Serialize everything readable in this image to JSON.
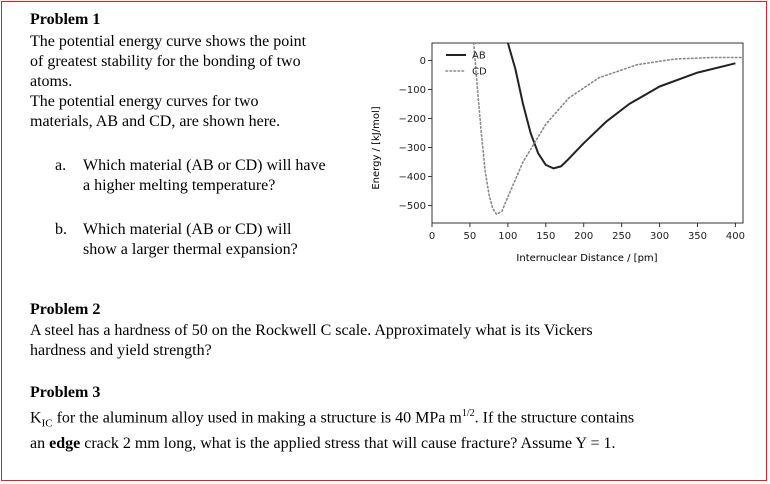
{
  "problem1": {
    "heading": "Problem 1",
    "lines": [
      "The potential energy curve shows the point",
      "of greatest stability for the bonding of two",
      "atoms.",
      "The potential energy curves for two",
      "materials, AB and CD, are shown here."
    ],
    "question_a_marker": "a.",
    "question_a_lines": [
      "Which material (AB or CD) will have",
      "a higher melting temperature?"
    ],
    "question_b_marker": "b.",
    "question_b_lines": [
      "Which material (AB or CD) will",
      "show a larger thermal expansion?"
    ]
  },
  "problem2": {
    "heading": "Problem 2",
    "lines": [
      "A steel has a hardness of 50 on the Rockwell C scale. Approximately what is its Vickers",
      "hardness and yield strength?"
    ]
  },
  "problem3": {
    "heading": "Problem 3",
    "line1_a": "K",
    "line1_sub": "IC",
    "line1_b": " for the aluminum alloy used in making a structure is 40 MPa m",
    "line1_sup": "1/2",
    "line1_c": ".  If the structure contains",
    "line2_a": "an ",
    "line2_bold": "edge",
    "line2_b": " crack 2 mm long, what is the applied stress that will cause fracture?  Assume Y = 1."
  },
  "chart_data": {
    "type": "line",
    "xlabel": "Internuclear Distance / [pm]",
    "ylabel": "Energy / [kJ/mol]",
    "xlim": [
      0,
      410
    ],
    "ylim": [
      -560,
      60
    ],
    "xticks": [
      0,
      50,
      100,
      150,
      200,
      250,
      300,
      350,
      400
    ],
    "yticks": [
      0,
      -100,
      -200,
      -300,
      -400,
      -500
    ],
    "legend_position": "top-left",
    "series": [
      {
        "name": "AB",
        "style": "solid",
        "color": "#222222",
        "points": [
          [
            100,
            60
          ],
          [
            110,
            -30
          ],
          [
            120,
            -150
          ],
          [
            130,
            -250
          ],
          [
            140,
            -320
          ],
          [
            150,
            -360
          ],
          [
            160,
            -372
          ],
          [
            170,
            -365
          ],
          [
            180,
            -340
          ],
          [
            200,
            -285
          ],
          [
            230,
            -210
          ],
          [
            260,
            -150
          ],
          [
            300,
            -90
          ],
          [
            350,
            -42
          ],
          [
            400,
            -10
          ]
        ]
      },
      {
        "name": "CD",
        "style": "dotted",
        "color": "#888888",
        "points": [
          [
            55,
            60
          ],
          [
            60,
            -100
          ],
          [
            65,
            -250
          ],
          [
            70,
            -380
          ],
          [
            75,
            -460
          ],
          [
            80,
            -510
          ],
          [
            85,
            -530
          ],
          [
            92,
            -520
          ],
          [
            100,
            -470
          ],
          [
            120,
            -350
          ],
          [
            150,
            -220
          ],
          [
            180,
            -130
          ],
          [
            220,
            -60
          ],
          [
            270,
            -15
          ],
          [
            320,
            5
          ],
          [
            370,
            10
          ],
          [
            410,
            10
          ]
        ]
      }
    ]
  }
}
